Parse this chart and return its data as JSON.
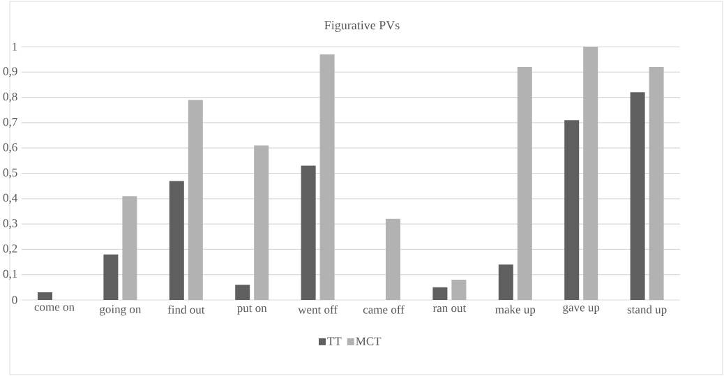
{
  "chart_data": {
    "type": "bar",
    "title": "Figurative PVs",
    "categories": [
      "come on",
      "going on",
      "find out",
      "put on",
      "went off",
      "came off",
      "ran out",
      "make up",
      "gave up",
      "stand up"
    ],
    "series": [
      {
        "name": "TT",
        "color": "#5f5f5f",
        "values": [
          0.03,
          0.18,
          0.47,
          0.06,
          0.53,
          0,
          0.05,
          0.14,
          0.71,
          0.82
        ]
      },
      {
        "name": "MCT",
        "color": "#b2b2b2",
        "values": [
          0,
          0.41,
          0.79,
          0.61,
          0.97,
          0.32,
          0.08,
          0.92,
          1.0,
          0.92
        ]
      }
    ],
    "ylim": [
      0,
      1
    ],
    "yticks": [
      0,
      {
        "value": 0.1,
        "label": "0,1"
      },
      {
        "value": 0.2,
        "label": "0,2"
      },
      {
        "value": 0.3,
        "label": "0,3"
      },
      {
        "value": 0.4,
        "label": "0,4"
      },
      {
        "value": 0.5,
        "label": "0,5"
      },
      {
        "value": 0.6,
        "label": "0,6"
      },
      {
        "value": 0.7,
        "label": "0,7"
      },
      {
        "value": 0.8,
        "label": "0,8"
      },
      {
        "value": 0.9,
        "label": "0,9"
      },
      1
    ],
    "grid": "y",
    "legend": "bottom"
  }
}
